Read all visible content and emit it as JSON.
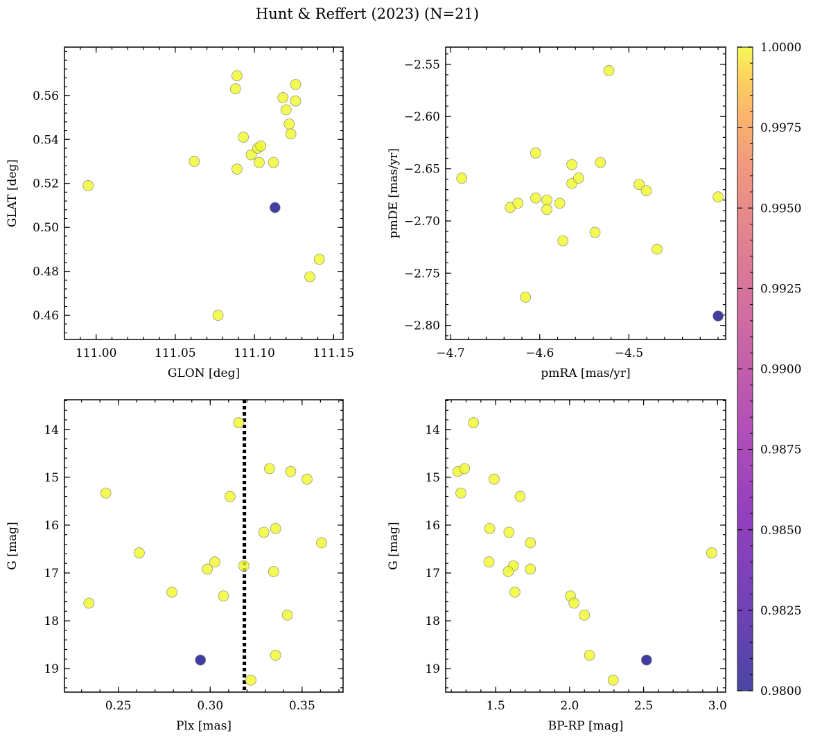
{
  "figure": {
    "title": "Hunt & Reffert (2023) (N=21)"
  },
  "colorbar": {
    "min": 0.98,
    "max": 1.0,
    "ticks": [
      "0.9800",
      "0.9825",
      "0.9850",
      "0.9875",
      "0.9900",
      "0.9925",
      "0.9950",
      "0.9975",
      "1.0000"
    ],
    "colormap": "plasma"
  },
  "chart_data": [
    {
      "type": "scatter",
      "xlabel": "GLON [deg]",
      "ylabel": "GLAT [deg]",
      "xlim": [
        110.98,
        111.156
      ],
      "ylim": [
        0.449,
        0.582
      ],
      "y_inverted": false,
      "xticks": [
        111.0,
        111.05,
        111.1,
        111.15
      ],
      "xtick_labels": [
        "111.00",
        "111.05",
        "111.10",
        "111.15"
      ],
      "yticks": [
        0.46,
        0.48,
        0.5,
        0.52,
        0.54,
        0.56
      ],
      "ytick_labels": [
        "0.46",
        "0.48",
        "0.50",
        "0.52",
        "0.54",
        "0.56"
      ],
      "points": [
        {
          "x": 110.995,
          "y": 0.519,
          "p": 1.0
        },
        {
          "x": 111.062,
          "y": 0.53,
          "p": 1.0
        },
        {
          "x": 111.077,
          "y": 0.46,
          "p": 1.0
        },
        {
          "x": 111.088,
          "y": 0.563,
          "p": 1.0
        },
        {
          "x": 111.089,
          "y": 0.569,
          "p": 1.0
        },
        {
          "x": 111.089,
          "y": 0.5265,
          "p": 1.0
        },
        {
          "x": 111.093,
          "y": 0.541,
          "p": 1.0
        },
        {
          "x": 111.098,
          "y": 0.533,
          "p": 1.0
        },
        {
          "x": 111.102,
          "y": 0.536,
          "p": 1.0
        },
        {
          "x": 111.104,
          "y": 0.537,
          "p": 1.0
        },
        {
          "x": 111.103,
          "y": 0.5295,
          "p": 1.0
        },
        {
          "x": 111.112,
          "y": 0.5295,
          "p": 1.0
        },
        {
          "x": 111.118,
          "y": 0.559,
          "p": 1.0
        },
        {
          "x": 111.12,
          "y": 0.5535,
          "p": 1.0
        },
        {
          "x": 111.122,
          "y": 0.547,
          "p": 1.0
        },
        {
          "x": 111.123,
          "y": 0.5425,
          "p": 1.0
        },
        {
          "x": 111.126,
          "y": 0.565,
          "p": 1.0
        },
        {
          "x": 111.126,
          "y": 0.5575,
          "p": 1.0
        },
        {
          "x": 111.135,
          "y": 0.4775,
          "p": 1.0
        },
        {
          "x": 111.141,
          "y": 0.4855,
          "p": 1.0
        },
        {
          "x": 111.113,
          "y": 0.509,
          "p": 0.98
        }
      ]
    },
    {
      "type": "scatter",
      "xlabel": "pmRA [mas/yr]",
      "ylabel": "pmDE [mas/yr]",
      "xlim": [
        -4.7055,
        -4.3915
      ],
      "ylim": [
        -2.8135,
        -2.5335
      ],
      "y_inverted": false,
      "xticks": [
        -4.7,
        -4.6,
        -4.5
      ],
      "xtick_labels": [
        "−4.7",
        "−4.6",
        "−4.5"
      ],
      "yticks": [
        -2.8,
        -2.75,
        -2.7,
        -2.65,
        -2.6,
        -2.55
      ],
      "ytick_labels": [
        "−2.80",
        "−2.75",
        "−2.70",
        "−2.65",
        "−2.60",
        "−2.55"
      ],
      "points": [
        {
          "x": -4.6875,
          "y": -2.659,
          "p": 1.0
        },
        {
          "x": -4.633,
          "y": -2.687,
          "p": 1.0
        },
        {
          "x": -4.6245,
          "y": -2.683,
          "p": 1.0
        },
        {
          "x": -4.616,
          "y": -2.773,
          "p": 1.0
        },
        {
          "x": -4.6045,
          "y": -2.635,
          "p": 1.0
        },
        {
          "x": -4.6045,
          "y": -2.678,
          "p": 1.0
        },
        {
          "x": -4.592,
          "y": -2.68,
          "p": 1.0
        },
        {
          "x": -4.592,
          "y": -2.689,
          "p": 1.0
        },
        {
          "x": -4.5775,
          "y": -2.683,
          "p": 1.0
        },
        {
          "x": -4.574,
          "y": -2.719,
          "p": 1.0
        },
        {
          "x": -4.564,
          "y": -2.646,
          "p": 1.0
        },
        {
          "x": -4.564,
          "y": -2.664,
          "p": 1.0
        },
        {
          "x": -4.5565,
          "y": -2.659,
          "p": 1.0
        },
        {
          "x": -4.538,
          "y": -2.711,
          "p": 1.0
        },
        {
          "x": -4.532,
          "y": -2.644,
          "p": 1.0
        },
        {
          "x": -4.5225,
          "y": -2.556,
          "p": 1.0
        },
        {
          "x": -4.4885,
          "y": -2.665,
          "p": 1.0
        },
        {
          "x": -4.4805,
          "y": -2.671,
          "p": 1.0
        },
        {
          "x": -4.4685,
          "y": -2.727,
          "p": 1.0
        },
        {
          "x": -4.4,
          "y": -2.677,
          "p": 1.0
        },
        {
          "x": -4.4,
          "y": -2.791,
          "p": 0.98
        }
      ]
    },
    {
      "type": "scatter",
      "xlabel": "Plx [mas]",
      "ylabel": "G [mag]",
      "xlim": [
        0.2207,
        0.3723
      ],
      "ylim": [
        13.38,
        19.49
      ],
      "y_inverted": true,
      "xticks": [
        0.25,
        0.3,
        0.35
      ],
      "xtick_labels": [
        "0.25",
        "0.30",
        "0.35"
      ],
      "yticks": [
        14,
        15,
        16,
        17,
        18,
        19
      ],
      "ytick_labels": [
        "14",
        "15",
        "16",
        "17",
        "18",
        "19"
      ],
      "vline": {
        "x": 0.3186,
        "style": "dotted"
      },
      "points": [
        {
          "x": 0.234,
          "y": 17.63,
          "p": 1.0
        },
        {
          "x": 0.2432,
          "y": 15.33,
          "p": 1.0
        },
        {
          "x": 0.2614,
          "y": 16.58,
          "p": 1.0
        },
        {
          "x": 0.2792,
          "y": 17.4,
          "p": 1.0
        },
        {
          "x": 0.2984,
          "y": 16.92,
          "p": 1.0
        },
        {
          "x": 0.3025,
          "y": 16.77,
          "p": 1.0
        },
        {
          "x": 0.3072,
          "y": 17.48,
          "p": 1.0
        },
        {
          "x": 0.3108,
          "y": 15.4,
          "p": 1.0
        },
        {
          "x": 0.3155,
          "y": 13.86,
          "p": 1.0
        },
        {
          "x": 0.3183,
          "y": 16.85,
          "p": 1.0
        },
        {
          "x": 0.3221,
          "y": 19.24,
          "p": 1.0
        },
        {
          "x": 0.3292,
          "y": 16.15,
          "p": 1.0
        },
        {
          "x": 0.3323,
          "y": 14.82,
          "p": 1.0
        },
        {
          "x": 0.3345,
          "y": 16.97,
          "p": 1.0
        },
        {
          "x": 0.3356,
          "y": 16.07,
          "p": 1.0
        },
        {
          "x": 0.3356,
          "y": 18.72,
          "p": 1.0
        },
        {
          "x": 0.342,
          "y": 17.88,
          "p": 1.0
        },
        {
          "x": 0.3438,
          "y": 14.88,
          "p": 1.0
        },
        {
          "x": 0.3527,
          "y": 15.04,
          "p": 1.0
        },
        {
          "x": 0.3606,
          "y": 16.37,
          "p": 1.0
        },
        {
          "x": 0.2947,
          "y": 18.82,
          "p": 0.98
        }
      ]
    },
    {
      "type": "scatter",
      "xlabel": "BP-RP [mag]",
      "ylabel": "G [mag]",
      "xlim": [
        1.162,
        3.055
      ],
      "ylim": [
        13.38,
        19.49
      ],
      "y_inverted": true,
      "xticks": [
        1.5,
        2.0,
        2.5,
        3.0
      ],
      "xtick_labels": [
        "1.5",
        "2.0",
        "2.5",
        "3.0"
      ],
      "yticks": [
        14,
        15,
        16,
        17,
        18,
        19
      ],
      "ytick_labels": [
        "14",
        "15",
        "16",
        "17",
        "18",
        "19"
      ],
      "points": [
        {
          "x": 1.35,
          "y": 13.86,
          "p": 1.0
        },
        {
          "x": 1.245,
          "y": 14.88,
          "p": 1.0
        },
        {
          "x": 1.29,
          "y": 14.82,
          "p": 1.0
        },
        {
          "x": 1.49,
          "y": 15.04,
          "p": 1.0
        },
        {
          "x": 1.265,
          "y": 15.33,
          "p": 1.0
        },
        {
          "x": 1.665,
          "y": 15.4,
          "p": 1.0
        },
        {
          "x": 1.46,
          "y": 16.07,
          "p": 1.0
        },
        {
          "x": 1.59,
          "y": 16.15,
          "p": 1.0
        },
        {
          "x": 1.735,
          "y": 16.37,
          "p": 1.0
        },
        {
          "x": 1.455,
          "y": 16.77,
          "p": 1.0
        },
        {
          "x": 1.62,
          "y": 16.85,
          "p": 1.0
        },
        {
          "x": 1.735,
          "y": 16.92,
          "p": 1.0
        },
        {
          "x": 1.585,
          "y": 16.97,
          "p": 1.0
        },
        {
          "x": 1.63,
          "y": 17.4,
          "p": 1.0
        },
        {
          "x": 2.005,
          "y": 17.48,
          "p": 1.0
        },
        {
          "x": 2.03,
          "y": 17.63,
          "p": 1.0
        },
        {
          "x": 2.1,
          "y": 17.88,
          "p": 1.0
        },
        {
          "x": 2.135,
          "y": 18.72,
          "p": 1.0
        },
        {
          "x": 2.295,
          "y": 19.24,
          "p": 1.0
        },
        {
          "x": 2.96,
          "y": 16.58,
          "p": 1.0
        },
        {
          "x": 2.52,
          "y": 18.82,
          "p": 0.98
        }
      ]
    }
  ]
}
